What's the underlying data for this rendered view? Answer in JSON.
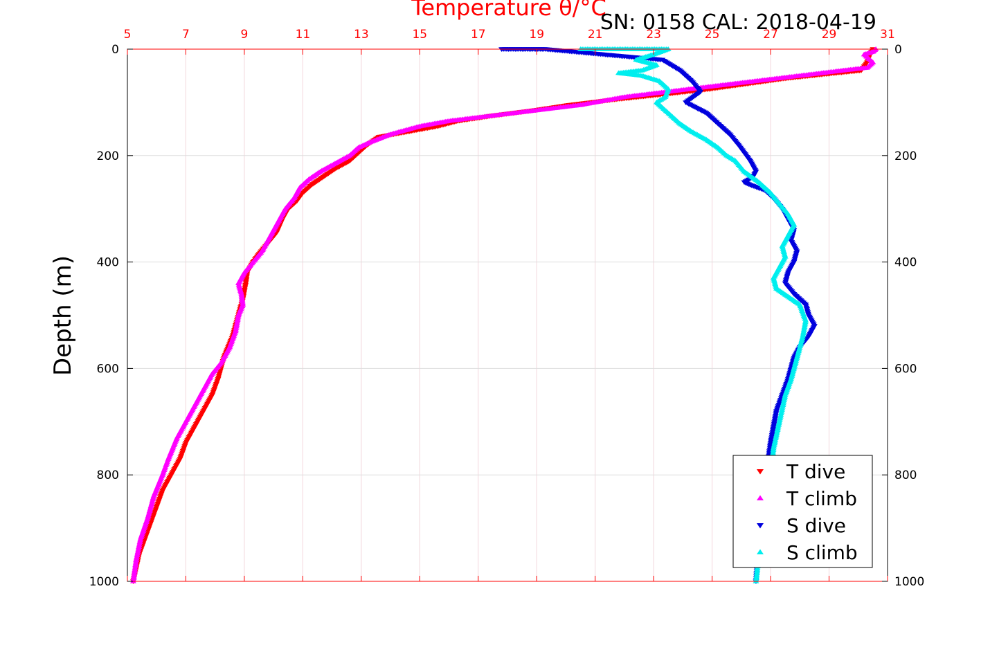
{
  "chart_data": {
    "type": "scatter",
    "title": "Temperature θ/°C",
    "subtitle": "SN: 0158  CAL: 2018-04-19",
    "xlabel": "Temperature θ/°C",
    "ylabel": "Depth (m)",
    "xlim": [
      5,
      31
    ],
    "ylim": [
      0,
      1000
    ],
    "y_reversed": true,
    "x_ticks": [
      "5",
      "7",
      "9",
      "11",
      "13",
      "15",
      "17",
      "19",
      "21",
      "23",
      "25",
      "27",
      "29",
      "31"
    ],
    "y_ticks": [
      "0",
      "200",
      "400",
      "600",
      "800",
      "1000"
    ],
    "x_axis_position": "top",
    "grid": true,
    "legend_position": "bottom-right",
    "colors": {
      "title": "#ff0000",
      "x_axis": "#ff0000",
      "grid": "#dddddd"
    },
    "series": [
      {
        "name": "T dive",
        "color": "#ff0000",
        "marker": "triangle-down",
        "x": [
          30.5,
          30.4,
          30.3,
          30.1,
          29.2,
          27.5,
          26.2,
          24.9,
          23.3,
          21.6,
          20.1,
          18.9,
          17.5,
          16.3,
          15.6,
          14.6,
          13.6,
          13.2,
          12.9,
          12.6,
          12.1,
          11.7,
          11.3,
          11.0,
          10.8,
          10.5,
          10.3,
          10.1,
          9.8,
          9.5,
          9.3,
          9.1,
          9.05,
          8.95,
          8.8,
          8.6,
          8.3,
          8.1,
          7.9,
          7.6,
          7.3,
          7.0,
          6.8,
          6.5,
          6.2,
          6.0,
          5.8,
          5.6,
          5.4,
          5.3,
          5.2
        ],
        "y": [
          0,
          10,
          25,
          40,
          45,
          55,
          65,
          75,
          85,
          95,
          105,
          115,
          125,
          135,
          145,
          155,
          165,
          180,
          195,
          210,
          225,
          240,
          255,
          270,
          285,
          300,
          320,
          345,
          365,
          385,
          400,
          420,
          440,
          470,
          500,
          540,
          580,
          620,
          650,
          680,
          710,
          740,
          770,
          800,
          830,
          860,
          890,
          920,
          950,
          975,
          1000
        ]
      },
      {
        "name": "T climb",
        "color": "#ff00ff",
        "marker": "triangle-up",
        "x": [
          5.2,
          5.3,
          5.45,
          5.7,
          5.9,
          6.2,
          6.4,
          6.7,
          7.0,
          7.3,
          7.6,
          7.9,
          8.2,
          8.5,
          8.7,
          8.8,
          8.95,
          8.9,
          8.8,
          9.0,
          9.3,
          9.6,
          9.8,
          10.0,
          10.2,
          10.4,
          10.7,
          10.9,
          11.2,
          11.6,
          12.1,
          12.6,
          12.9,
          13.3,
          14.0,
          15.0,
          16.0,
          17.5,
          19.0,
          20.5,
          22.0,
          23.5,
          25.0,
          26.5,
          28.0,
          29.5,
          30.3,
          30.5,
          30.2,
          30.5,
          30.6
        ],
        "y": [
          1000,
          960,
          920,
          880,
          840,
          800,
          770,
          730,
          700,
          670,
          640,
          610,
          590,
          560,
          530,
          500,
          480,
          460,
          440,
          420,
          400,
          380,
          360,
          340,
          320,
          300,
          280,
          260,
          245,
          230,
          215,
          200,
          185,
          175,
          160,
          145,
          135,
          125,
          115,
          105,
          90,
          80,
          70,
          60,
          50,
          40,
          35,
          25,
          10,
          5,
          0
        ]
      },
      {
        "name": "S dive",
        "color": "#0000dd",
        "marker": "triangle-down",
        "x": [
          17.8,
          18.8,
          19.3,
          23.3,
          23.9,
          24.3,
          24.6,
          24.1,
          24.8,
          25.2,
          25.6,
          25.9,
          26.1,
          26.3,
          26.4,
          26.5,
          26.4,
          26.1,
          26.3,
          26.8,
          27.1,
          27.4,
          27.6,
          27.8,
          27.7,
          27.9,
          27.8,
          27.6,
          27.5,
          27.8,
          28.2,
          28.3,
          28.5,
          28.3,
          28.0,
          27.8,
          27.7,
          27.6,
          27.4,
          27.2,
          27.1,
          27.0,
          26.9,
          26.8,
          26.7,
          26.6,
          26.5
        ],
        "y": [
          0,
          0,
          0,
          20,
          40,
          60,
          80,
          100,
          120,
          140,
          160,
          180,
          195,
          210,
          220,
          230,
          240,
          250,
          255,
          265,
          280,
          300,
          320,
          340,
          360,
          380,
          400,
          420,
          440,
          460,
          480,
          500,
          520,
          540,
          560,
          580,
          600,
          620,
          650,
          680,
          710,
          740,
          780,
          820,
          870,
          930,
          1000
        ]
      },
      {
        "name": "S climb",
        "color": "#00eeee",
        "marker": "triangle-up",
        "x": [
          26.5,
          26.6,
          26.8,
          26.9,
          27.0,
          27.1,
          27.3,
          27.5,
          27.7,
          27.9,
          28.1,
          28.2,
          28.0,
          27.6,
          27.2,
          27.1,
          27.3,
          27.5,
          27.4,
          27.6,
          27.8,
          27.6,
          27.3,
          27.0,
          26.6,
          26.1,
          25.8,
          25.5,
          25.2,
          24.8,
          24.3,
          23.9,
          23.6,
          23.3,
          23.1,
          23.4,
          23.5,
          23.2,
          22.6,
          21.8,
          22.6,
          23.1,
          22.4,
          23.0,
          23.5,
          22.1,
          21.2,
          20.5
        ],
        "y": [
          1000,
          950,
          900,
          850,
          800,
          750,
          700,
          650,
          620,
          580,
          540,
          510,
          480,
          465,
          450,
          430,
          410,
          390,
          370,
          350,
          330,
          310,
          290,
          270,
          250,
          230,
          210,
          200,
          185,
          170,
          155,
          140,
          125,
          110,
          100,
          90,
          75,
          60,
          50,
          45,
          40,
          30,
          20,
          10,
          0,
          0,
          0,
          0
        ]
      }
    ],
    "legend": [
      "T dive",
      "T climb",
      "S dive",
      "S climb"
    ]
  }
}
